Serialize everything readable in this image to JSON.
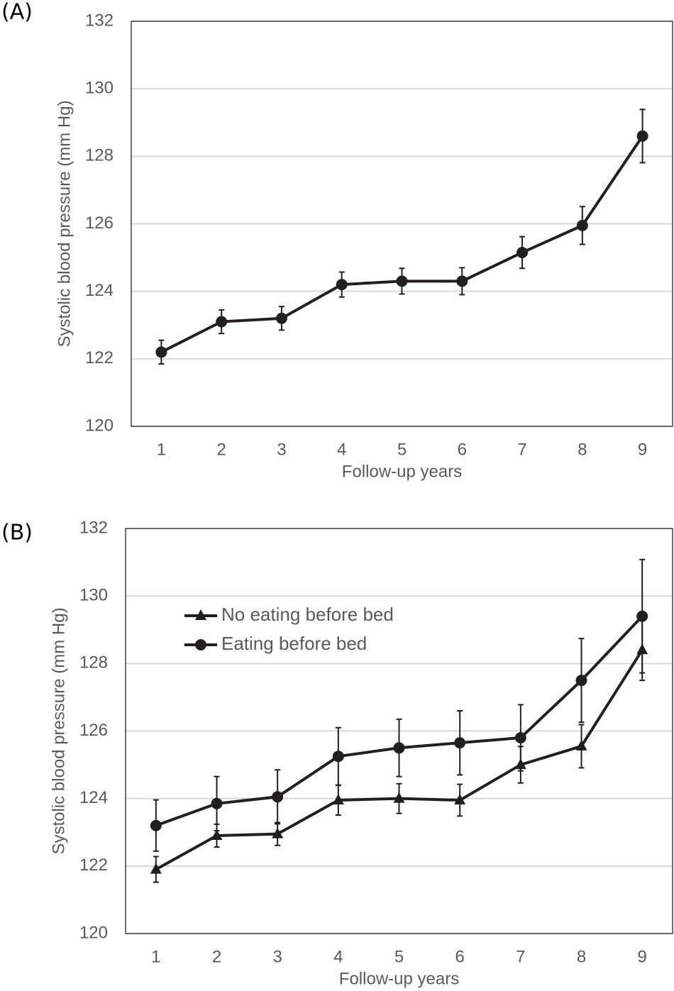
{
  "chart_data": [
    {
      "type": "line",
      "title": "(A)",
      "x_label": "Follow-up years",
      "y_label": "Systolic blood pressure (mm Hg)",
      "categories": [
        "1",
        "2",
        "3",
        "4",
        "5",
        "6",
        "7",
        "8",
        "9"
      ],
      "values": [
        122.2,
        123.1,
        123.2,
        124.2,
        124.3,
        124.3,
        125.15,
        125.95,
        128.6
      ],
      "errors": [
        0.35,
        0.35,
        0.35,
        0.37,
        0.38,
        0.4,
        0.47,
        0.56,
        0.79
      ],
      "color": "#231f20",
      "marker": "circle",
      "ylim": [
        120,
        132
      ],
      "yticks": [
        120,
        122,
        124,
        126,
        128,
        130,
        132
      ],
      "grid": true
    },
    {
      "type": "line",
      "title": "(B)",
      "x_label": "Follow-up years",
      "y_label": "Systolic blood pressure (mm Hg)",
      "categories": [
        "1",
        "2",
        "3",
        "4",
        "5",
        "6",
        "7",
        "8",
        "9"
      ],
      "series": [
        {
          "name": "No eating before bed",
          "color": "#231f20",
          "marker": "triangle",
          "values": [
            121.9,
            122.9,
            122.95,
            123.95,
            124.0,
            123.95,
            125.0,
            125.55,
            128.4
          ],
          "errors": [
            0.38,
            0.34,
            0.34,
            0.44,
            0.44,
            0.47,
            0.54,
            0.64,
            0.9
          ]
        },
        {
          "name": "Eating before bed",
          "color": "#231f20",
          "marker": "circle",
          "values": [
            123.2,
            123.85,
            124.05,
            125.25,
            125.5,
            125.65,
            125.8,
            127.5,
            129.4
          ],
          "errors": [
            0.76,
            0.8,
            0.8,
            0.85,
            0.85,
            0.95,
            0.98,
            1.24,
            1.68
          ]
        }
      ],
      "legend": "upper left",
      "ylim": [
        120,
        132
      ],
      "yticks": [
        120,
        122,
        124,
        126,
        128,
        130,
        132
      ],
      "grid": true
    }
  ]
}
